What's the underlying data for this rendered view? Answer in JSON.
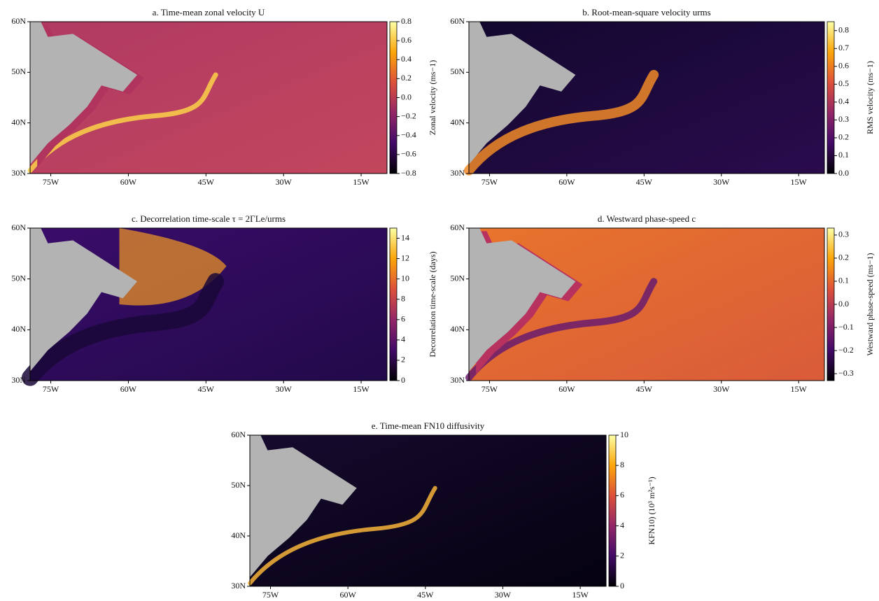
{
  "chart_data": [
    {
      "type": "map",
      "title": "a. Time-mean zonal velocity U",
      "colorbar_label": "Zonal velocity (ms−1)",
      "colormap": "inferno",
      "xlim": [
        -79,
        -10
      ],
      "ylim": [
        30,
        60
      ],
      "xticks": [
        {
          "value": -75,
          "label": "75W"
        },
        {
          "value": -60,
          "label": "60W"
        },
        {
          "value": -45,
          "label": "45W"
        },
        {
          "value": -30,
          "label": "30W"
        },
        {
          "value": -15,
          "label": "15W"
        }
      ],
      "yticks": [
        {
          "value": 30,
          "label": "30N"
        },
        {
          "value": 40,
          "label": "40N"
        },
        {
          "value": 50,
          "label": "50N"
        },
        {
          "value": 60,
          "label": "60N"
        }
      ],
      "clim": [
        -0.8,
        0.8
      ],
      "cticks": [
        {
          "value": -0.8,
          "label": "−0.8"
        },
        {
          "value": -0.6,
          "label": "−0.6"
        },
        {
          "value": -0.4,
          "label": "−0.4"
        },
        {
          "value": -0.2,
          "label": "−0.2"
        },
        {
          "value": 0,
          "label": "0.0"
        },
        0.2,
        0.4,
        0.6,
        0.8
      ]
    },
    {
      "type": "map",
      "title": "b. Root-mean-square velocity urms",
      "colorbar_label": "RMS velocity (ms−1)",
      "colormap": "inferno",
      "xlim": [
        -79,
        -10
      ],
      "ylim": [
        30,
        60
      ],
      "xticks": [
        {
          "value": -75,
          "label": "75W"
        },
        {
          "value": -60,
          "label": "60W"
        },
        {
          "value": -45,
          "label": "45W"
        },
        {
          "value": -30,
          "label": "30W"
        },
        {
          "value": -15,
          "label": "15W"
        }
      ],
      "yticks": [
        {
          "value": 30,
          "label": "30N"
        },
        {
          "value": 40,
          "label": "40N"
        },
        {
          "value": 50,
          "label": "50N"
        },
        {
          "value": 60,
          "label": "60N"
        }
      ],
      "clim": [
        0,
        0.85
      ],
      "cticks": [
        {
          "value": 0,
          "label": "0.0"
        },
        0.1,
        0.2,
        0.3,
        0.4,
        0.5,
        0.6,
        0.7,
        0.8
      ]
    },
    {
      "type": "map",
      "title": "c. Decorrelation time-scale τ = 2ΓLe/urms",
      "colorbar_label": "Decorrelation time-scale (days)",
      "colormap": "inferno",
      "xlim": [
        -79,
        -10
      ],
      "ylim": [
        30,
        60
      ],
      "xticks": [
        {
          "value": -75,
          "label": "75W"
        },
        {
          "value": -60,
          "label": "60W"
        },
        {
          "value": -45,
          "label": "45W"
        },
        {
          "value": -30,
          "label": "30W"
        },
        {
          "value": -15,
          "label": "15W"
        }
      ],
      "yticks": [
        {
          "value": 30,
          "label": "30N"
        },
        {
          "value": 40,
          "label": "40N"
        },
        {
          "value": 50,
          "label": "50N"
        },
        {
          "value": 60,
          "label": "60N"
        }
      ],
      "clim": [
        0,
        15
      ],
      "cticks": [
        0,
        2,
        4,
        6,
        8,
        10,
        12,
        14
      ]
    },
    {
      "type": "map",
      "title": "d. Westward phase-speed c",
      "colorbar_label": "Westward phase-speed (ms−1)",
      "colormap": "inferno",
      "xlim": [
        -79,
        -10
      ],
      "ylim": [
        30,
        60
      ],
      "xticks": [
        {
          "value": -75,
          "label": "75W"
        },
        {
          "value": -60,
          "label": "60W"
        },
        {
          "value": -45,
          "label": "45W"
        },
        {
          "value": -30,
          "label": "30W"
        },
        {
          "value": -15,
          "label": "15W"
        }
      ],
      "yticks": [
        {
          "value": 30,
          "label": "30N"
        },
        {
          "value": 40,
          "label": "40N"
        },
        {
          "value": 50,
          "label": "50N"
        },
        {
          "value": 60,
          "label": "60N"
        }
      ],
      "clim": [
        -0.33,
        0.33
      ],
      "cticks": [
        {
          "value": -0.3,
          "label": "−0.3"
        },
        {
          "value": -0.2,
          "label": "−0.2"
        },
        {
          "value": -0.1,
          "label": "−0.1"
        },
        {
          "value": 0,
          "label": "0.0"
        },
        0.1,
        0.2,
        0.3
      ]
    },
    {
      "type": "map",
      "title": "e. Time-mean FN10 diffusivity",
      "colorbar_label": "KFN10) (10³ m²s⁻¹)",
      "colormap": "inferno",
      "xlim": [
        -79,
        -10
      ],
      "ylim": [
        30,
        60
      ],
      "xticks": [
        {
          "value": -75,
          "label": "75W"
        },
        {
          "value": -60,
          "label": "60W"
        },
        {
          "value": -45,
          "label": "45W"
        },
        {
          "value": -30,
          "label": "30W"
        },
        {
          "value": -15,
          "label": "15W"
        }
      ],
      "yticks": [
        {
          "value": 30,
          "label": "30N"
        },
        {
          "value": 40,
          "label": "40N"
        },
        {
          "value": 50,
          "label": "50N"
        },
        {
          "value": 60,
          "label": "60N"
        }
      ],
      "clim": [
        0,
        10
      ],
      "cticks": [
        0,
        2,
        4,
        6,
        8,
        10
      ]
    }
  ]
}
